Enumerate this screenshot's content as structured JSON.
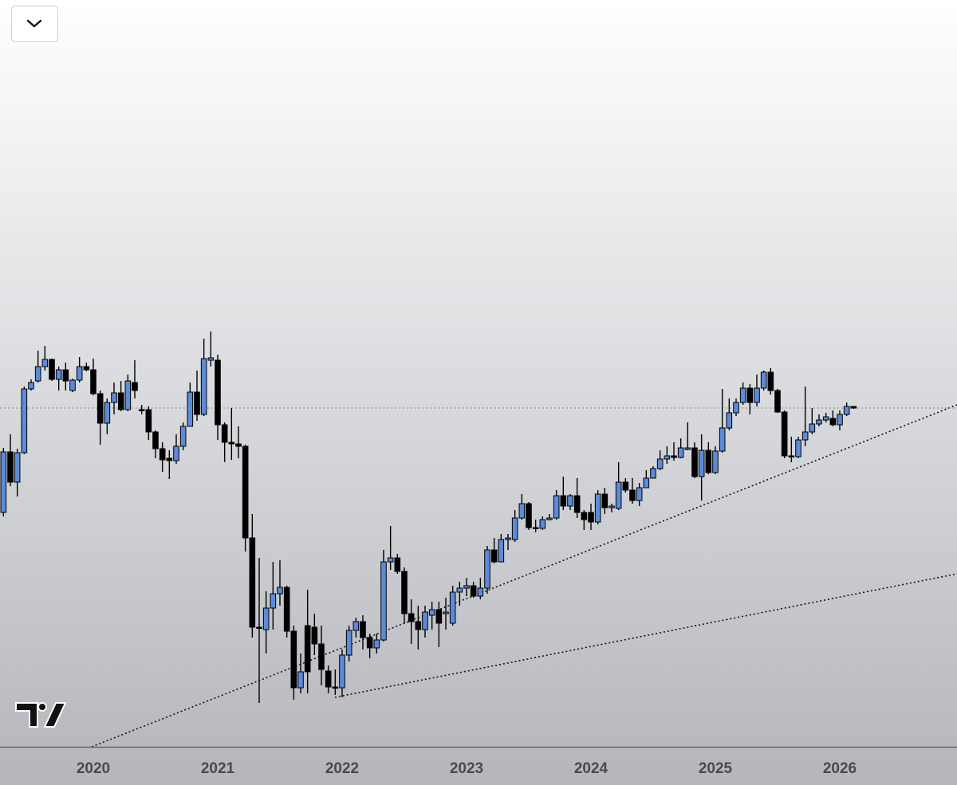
{
  "chart_data": {
    "type": "candlestick",
    "categories": [
      null,
      null,
      null,
      null,
      null,
      null,
      null,
      null,
      null,
      null,
      null,
      null,
      null,
      "2020",
      null,
      null,
      null,
      null,
      null,
      null,
      null,
      null,
      null,
      null,
      null,
      null,
      null,
      null,
      null,
      null,
      null,
      "2021",
      null,
      null,
      null,
      null,
      null,
      null,
      null,
      null,
      null,
      null,
      null,
      null,
      null,
      null,
      null,
      null,
      null,
      "2022",
      null,
      null,
      null,
      null,
      null,
      null,
      null,
      null,
      null,
      null,
      null,
      null,
      null,
      null,
      null,
      null,
      null,
      "2023",
      null,
      null,
      null,
      null,
      null,
      null,
      null,
      null,
      null,
      null,
      null,
      null,
      null,
      null,
      null,
      null,
      null,
      "2024",
      null,
      null,
      null,
      null,
      null,
      null,
      null,
      null,
      null,
      null,
      null,
      null,
      null,
      null,
      null,
      null,
      null,
      "2025",
      null,
      null,
      null,
      null,
      null,
      null,
      null,
      null,
      null,
      null,
      null,
      null,
      null,
      null,
      null,
      null,
      null,
      "2026",
      null,
      null
    ],
    "open": [
      294,
      370,
      332,
      369,
      449,
      459,
      477,
      486,
      461,
      473,
      447,
      460,
      477,
      473,
      443,
      406,
      432,
      444,
      423,
      457,
      423,
      423,
      395,
      374,
      362,
      359,
      377,
      402,
      445,
      417,
      485,
      485,
      404,
      382,
      380,
      377,
      262,
      150,
      147,
      174,
      192,
      200,
      145,
      74,
      152,
      150,
      129,
      95,
      75,
      74,
      115,
      146,
      157,
      137,
      124,
      134,
      232,
      237,
      220,
      167,
      157,
      147,
      165,
      172,
      167,
      155,
      194,
      199,
      202,
      189,
      199,
      247,
      232,
      260,
      260,
      287,
      305,
      275,
      274,
      285,
      287,
      315,
      302,
      315,
      294,
      294,
      282,
      317,
      300,
      299,
      332,
      322,
      309,
      325,
      337,
      349,
      361,
      365,
      363,
      373,
      375,
      339,
      372,
      344,
      371,
      400,
      419,
      432,
      450,
      432,
      450,
      470,
      447,
      420,
      365,
      364,
      385,
      395,
      405,
      410,
      412,
      404,
      417,
      427
    ],
    "high": [
      375,
      392,
      374,
      452,
      461,
      497,
      503,
      487,
      477,
      482,
      462,
      489,
      482,
      487,
      447,
      437,
      457,
      459,
      467,
      485,
      429,
      427,
      397,
      382,
      372,
      392,
      407,
      457,
      472,
      512,
      521,
      492,
      407,
      425,
      402,
      379,
      292,
      237,
      195,
      232,
      234,
      202,
      152,
      117,
      197,
      167,
      152,
      102,
      97,
      122,
      152,
      162,
      165,
      142,
      142,
      247,
      277,
      242,
      225,
      185,
      177,
      177,
      182,
      182,
      187,
      202,
      207,
      212,
      207,
      212,
      252,
      262,
      267,
      267,
      297,
      317,
      307,
      285,
      289,
      292,
      322,
      339,
      317,
      337,
      297,
      305,
      322,
      325,
      305,
      357,
      337,
      337,
      331,
      347,
      352,
      372,
      377,
      382,
      387,
      407,
      382,
      392,
      382,
      377,
      449,
      437,
      437,
      457,
      455,
      467,
      472,
      475,
      449,
      422,
      389,
      389,
      452,
      425,
      417,
      419,
      422,
      422,
      432,
      427
    ],
    "low": [
      289,
      327,
      314,
      367,
      447,
      457,
      472,
      459,
      447,
      447,
      445,
      457,
      471,
      441,
      379,
      392,
      417,
      421,
      421,
      437,
      417,
      385,
      362,
      345,
      336,
      355,
      372,
      402,
      409,
      415,
      477,
      385,
      357,
      360,
      362,
      245,
      137,
      55,
      117,
      147,
      177,
      137,
      59,
      67,
      67,
      115,
      77,
      67,
      65,
      62,
      107,
      137,
      122,
      111,
      117,
      132,
      222,
      217,
      155,
      129,
      122,
      137,
      147,
      125,
      147,
      152,
      177,
      189,
      187,
      185,
      192,
      230,
      232,
      247,
      257,
      285,
      272,
      269,
      272,
      284,
      285,
      297,
      297,
      287,
      272,
      272,
      279,
      292,
      294,
      297,
      319,
      305,
      302,
      325,
      337,
      347,
      355,
      359,
      362,
      372,
      337,
      309,
      342,
      342,
      369,
      397,
      415,
      429,
      417,
      427,
      447,
      442,
      419,
      362,
      357,
      362,
      377,
      392,
      402,
      407,
      402,
      397,
      415,
      424
    ],
    "close": [
      370,
      332,
      369,
      449,
      457,
      477,
      486,
      461,
      473,
      459,
      460,
      477,
      473,
      443,
      406,
      432,
      444,
      423,
      459,
      447,
      422,
      395,
      374,
      360,
      359,
      377,
      402,
      445,
      417,
      487,
      488,
      404,
      382,
      380,
      377,
      262,
      150,
      149,
      174,
      192,
      200,
      145,
      74,
      94,
      94,
      129,
      97,
      75,
      74,
      115,
      146,
      157,
      137,
      124,
      134,
      232,
      237,
      220,
      167,
      157,
      147,
      169,
      172,
      155,
      169,
      194,
      199,
      202,
      189,
      199,
      247,
      232,
      260,
      262,
      287,
      305,
      275,
      274,
      285,
      287,
      315,
      302,
      315,
      294,
      285,
      282,
      317,
      300,
      302,
      332,
      322,
      309,
      325,
      337,
      349,
      361,
      365,
      363,
      375,
      375,
      339,
      372,
      344,
      371,
      400,
      419,
      432,
      450,
      432,
      450,
      470,
      447,
      420,
      365,
      364,
      385,
      395,
      405,
      410,
      414,
      404,
      417,
      427,
      425
    ],
    "up_color": "#5b8bd9",
    "down_color": "#000000",
    "ylim": [
      0,
      937
    ]
  }
}
